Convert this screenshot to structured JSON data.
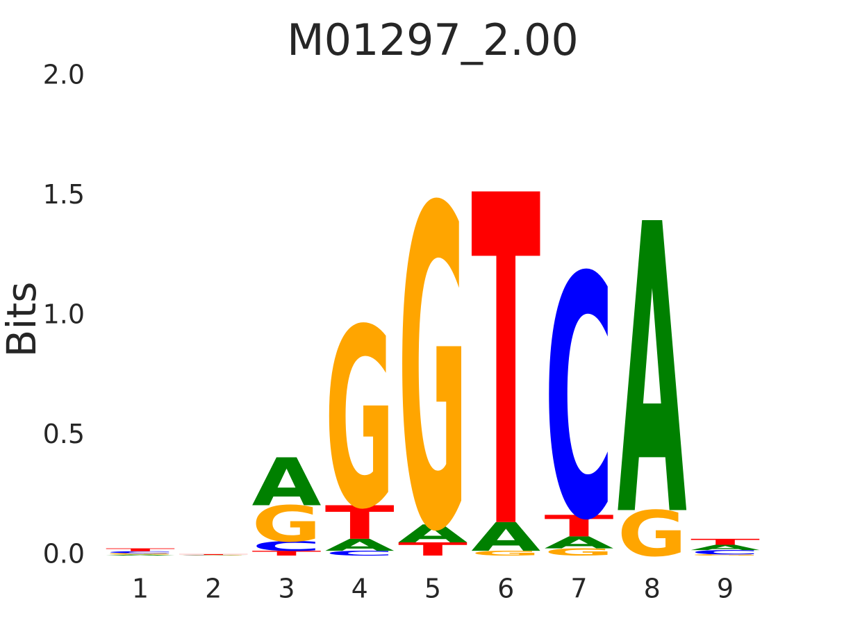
{
  "chart_data": {
    "type": "sequence_logo",
    "title": "M01297_2.00",
    "y_label": "Bits",
    "categories": [
      "1",
      "2",
      "3",
      "4",
      "5",
      "6",
      "7",
      "8",
      "9"
    ],
    "series": [
      {
        "name": "A",
        "color": "#008000",
        "values": [
          0.004,
          0.001,
          0.2,
          0.05,
          0.075,
          0.12,
          0.05,
          1.21,
          0.022
        ]
      },
      {
        "name": "C",
        "color": "#0000ff",
        "values": [
          0.008,
          0.001,
          0.04,
          0.02,
          0,
          0,
          1.01,
          0,
          0.018
        ]
      },
      {
        "name": "G",
        "color": "#ffa500",
        "values": [
          0.006,
          0.001,
          0.15,
          0.75,
          1.34,
          0.02,
          0.03,
          0.19,
          0.005
        ]
      },
      {
        "name": "T",
        "color": "#ff0000",
        "values": [
          0.012,
          0.003,
          0.02,
          0.14,
          0.055,
          1.38,
          0.09,
          0,
          0.025
        ]
      }
    ],
    "ylim": [
      0,
      2.0
    ],
    "yticks": [
      {
        "value": 0,
        "label": "0.0"
      },
      {
        "value": 0.5,
        "label": "0.5"
      },
      {
        "value": 1,
        "label": "1.0"
      },
      {
        "value": 1.5,
        "label": "1.5"
      },
      {
        "value": 2,
        "label": "2.0"
      }
    ]
  }
}
